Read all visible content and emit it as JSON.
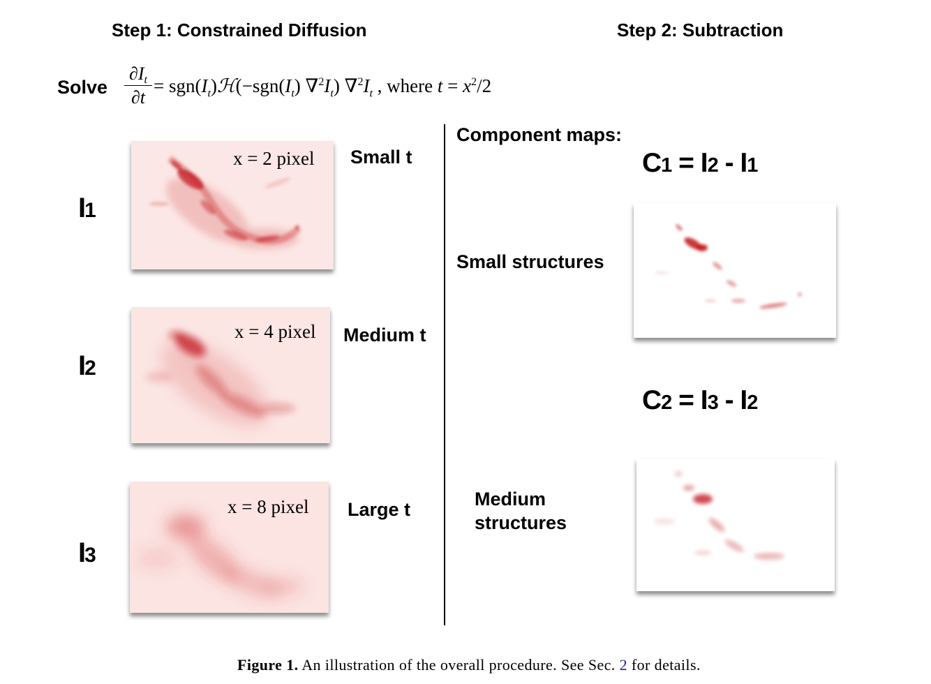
{
  "headings": {
    "step1": "Step 1: Constrained Diffusion",
    "step2": "Step 2: Subtraction"
  },
  "equation": {
    "solve": "Solve",
    "numerator": "∂I",
    "numerator_sub": "t",
    "denominator": "∂t",
    "rhs": "= sgn(I",
    "where": ", where t = x² / 2"
  },
  "maps": [
    {
      "row": "I",
      "row_sub": "1",
      "scale": "x = 2 pixel",
      "time": "Small t"
    },
    {
      "row": "I",
      "row_sub": "2",
      "scale": "x = 4 pixel",
      "time": "Medium t"
    },
    {
      "row": "I",
      "row_sub": "3",
      "scale": "x = 8 pixel",
      "time": "Large t"
    }
  ],
  "components": {
    "title": "Component maps:",
    "c1": {
      "lhs": "C",
      "lhs_sub": "1",
      "a": "I",
      "a_sub": "2",
      "b": "I",
      "b_sub": "1",
      "label": "Small structures"
    },
    "c2": {
      "lhs": "C",
      "lhs_sub": "2",
      "a": "I",
      "a_sub": "3",
      "b": "I",
      "b_sub": "2",
      "label_line1": "Medium",
      "label_line2": "structures"
    }
  },
  "caption": {
    "figure": "Figure 1.",
    "text_before": "An illustration of the overall procedure. See Sec.",
    "ref": "2",
    "text_after": "for details."
  },
  "colors": {
    "map_red": "#c0141a",
    "map_background_pink": "#fbe6e4"
  }
}
